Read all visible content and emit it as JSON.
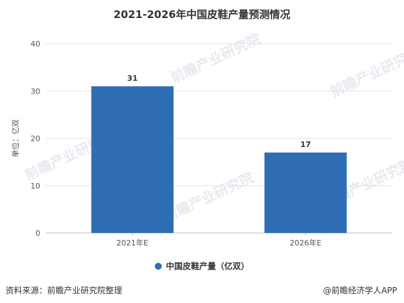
{
  "chart_data": {
    "type": "bar",
    "title": "2021-2026年中国皮鞋产量预测情况",
    "categories": [
      "2021年E",
      "2026年E"
    ],
    "series": [
      {
        "name": "中国皮鞋产量（亿双）",
        "values": [
          31,
          17
        ],
        "color": "#2f6eb5"
      }
    ],
    "ylabel": "单位：亿双",
    "xlabel": "",
    "ylim": [
      0,
      40
    ],
    "yticks": [
      0,
      10,
      20,
      30,
      40
    ],
    "grid": true,
    "legend_position": "bottom"
  },
  "footer": {
    "source": "资料来源：前瞻产业研究院整理",
    "credit": "@前瞻经济学人APP"
  },
  "watermark": {
    "text": "前瞻产业研究院"
  }
}
